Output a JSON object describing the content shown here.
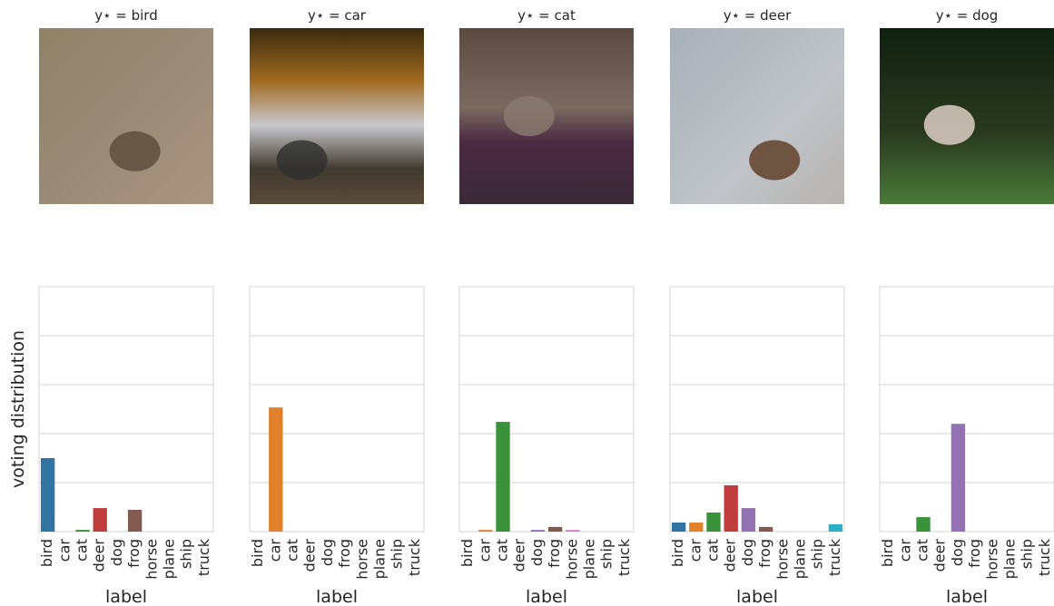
{
  "chart_data": [
    {
      "type": "bar",
      "title": "y⋆ = bird",
      "y_label": "voting distribution",
      "x_label": "label",
      "categories": [
        "bird",
        "car",
        "cat",
        "deer",
        "dog",
        "frog",
        "horse",
        "plane",
        "ship",
        "truck"
      ],
      "values": [
        0.3,
        0,
        0.007,
        0.096,
        0,
        0.089,
        0,
        0,
        0,
        0
      ],
      "colors": [
        "#3274a1",
        "#e1812c",
        "#3a923a",
        "#c03d3e",
        "#9372b2",
        "#845b53",
        "#d684bd",
        "#7f7f7f",
        "#a9aa35",
        "#2ab0c5"
      ],
      "ylim": [
        0,
        1
      ],
      "yticks": [
        0,
        0.2,
        0.4,
        0.6,
        0.8,
        1
      ],
      "grid": true
    },
    {
      "type": "bar",
      "title": "y⋆ = car",
      "x_label": "label",
      "categories": [
        "bird",
        "car",
        "cat",
        "deer",
        "dog",
        "frog",
        "horse",
        "plane",
        "ship",
        "truck"
      ],
      "values": [
        0,
        0.507,
        0,
        0,
        0,
        0,
        0,
        0,
        0,
        0
      ],
      "colors": [
        "#3274a1",
        "#e1812c",
        "#3a923a",
        "#c03d3e",
        "#9372b2",
        "#845b53",
        "#d684bd",
        "#7f7f7f",
        "#a9aa35",
        "#2ab0c5"
      ],
      "ylim": [
        0,
        1
      ],
      "yticks": [
        0,
        0.2,
        0.4,
        0.6,
        0.8,
        1
      ],
      "grid": true
    },
    {
      "type": "bar",
      "title": "y⋆ = cat",
      "x_label": "label",
      "categories": [
        "bird",
        "car",
        "cat",
        "deer",
        "dog",
        "frog",
        "horse",
        "plane",
        "ship",
        "truck"
      ],
      "values": [
        0,
        0.007,
        0.448,
        0,
        0.007,
        0.019,
        0.007,
        0,
        0,
        0
      ],
      "colors": [
        "#3274a1",
        "#e1812c",
        "#3a923a",
        "#c03d3e",
        "#9372b2",
        "#845b53",
        "#d684bd",
        "#7f7f7f",
        "#a9aa35",
        "#2ab0c5"
      ],
      "ylim": [
        0,
        1
      ],
      "yticks": [
        0,
        0.2,
        0.4,
        0.6,
        0.8,
        1
      ],
      "grid": true
    },
    {
      "type": "bar",
      "title": "y⋆ = deer",
      "x_label": "label",
      "categories": [
        "bird",
        "car",
        "cat",
        "deer",
        "dog",
        "frog",
        "horse",
        "plane",
        "ship",
        "truck"
      ],
      "values": [
        0.037,
        0.037,
        0.078,
        0.189,
        0.096,
        0.019,
        0,
        0,
        0,
        0.03
      ],
      "colors": [
        "#3274a1",
        "#e1812c",
        "#3a923a",
        "#c03d3e",
        "#9372b2",
        "#845b53",
        "#d684bd",
        "#7f7f7f",
        "#a9aa35",
        "#2ab0c5"
      ],
      "ylim": [
        0,
        1
      ],
      "yticks": [
        0,
        0.2,
        0.4,
        0.6,
        0.8,
        1
      ],
      "grid": true
    },
    {
      "type": "bar",
      "title": "y⋆ = dog",
      "x_label": "label",
      "categories": [
        "bird",
        "car",
        "cat",
        "deer",
        "dog",
        "frog",
        "horse",
        "plane",
        "ship",
        "truck"
      ],
      "values": [
        0,
        0,
        0.059,
        0,
        0.44,
        0,
        0,
        0,
        0,
        0
      ],
      "colors": [
        "#3274a1",
        "#e1812c",
        "#3a923a",
        "#c03d3e",
        "#9372b2",
        "#845b53",
        "#d684bd",
        "#7f7f7f",
        "#a9aa35",
        "#2ab0c5"
      ],
      "ylim": [
        0,
        1
      ],
      "yticks": [
        0,
        0.2,
        0.4,
        0.6,
        0.8,
        1
      ],
      "grid": true
    }
  ]
}
